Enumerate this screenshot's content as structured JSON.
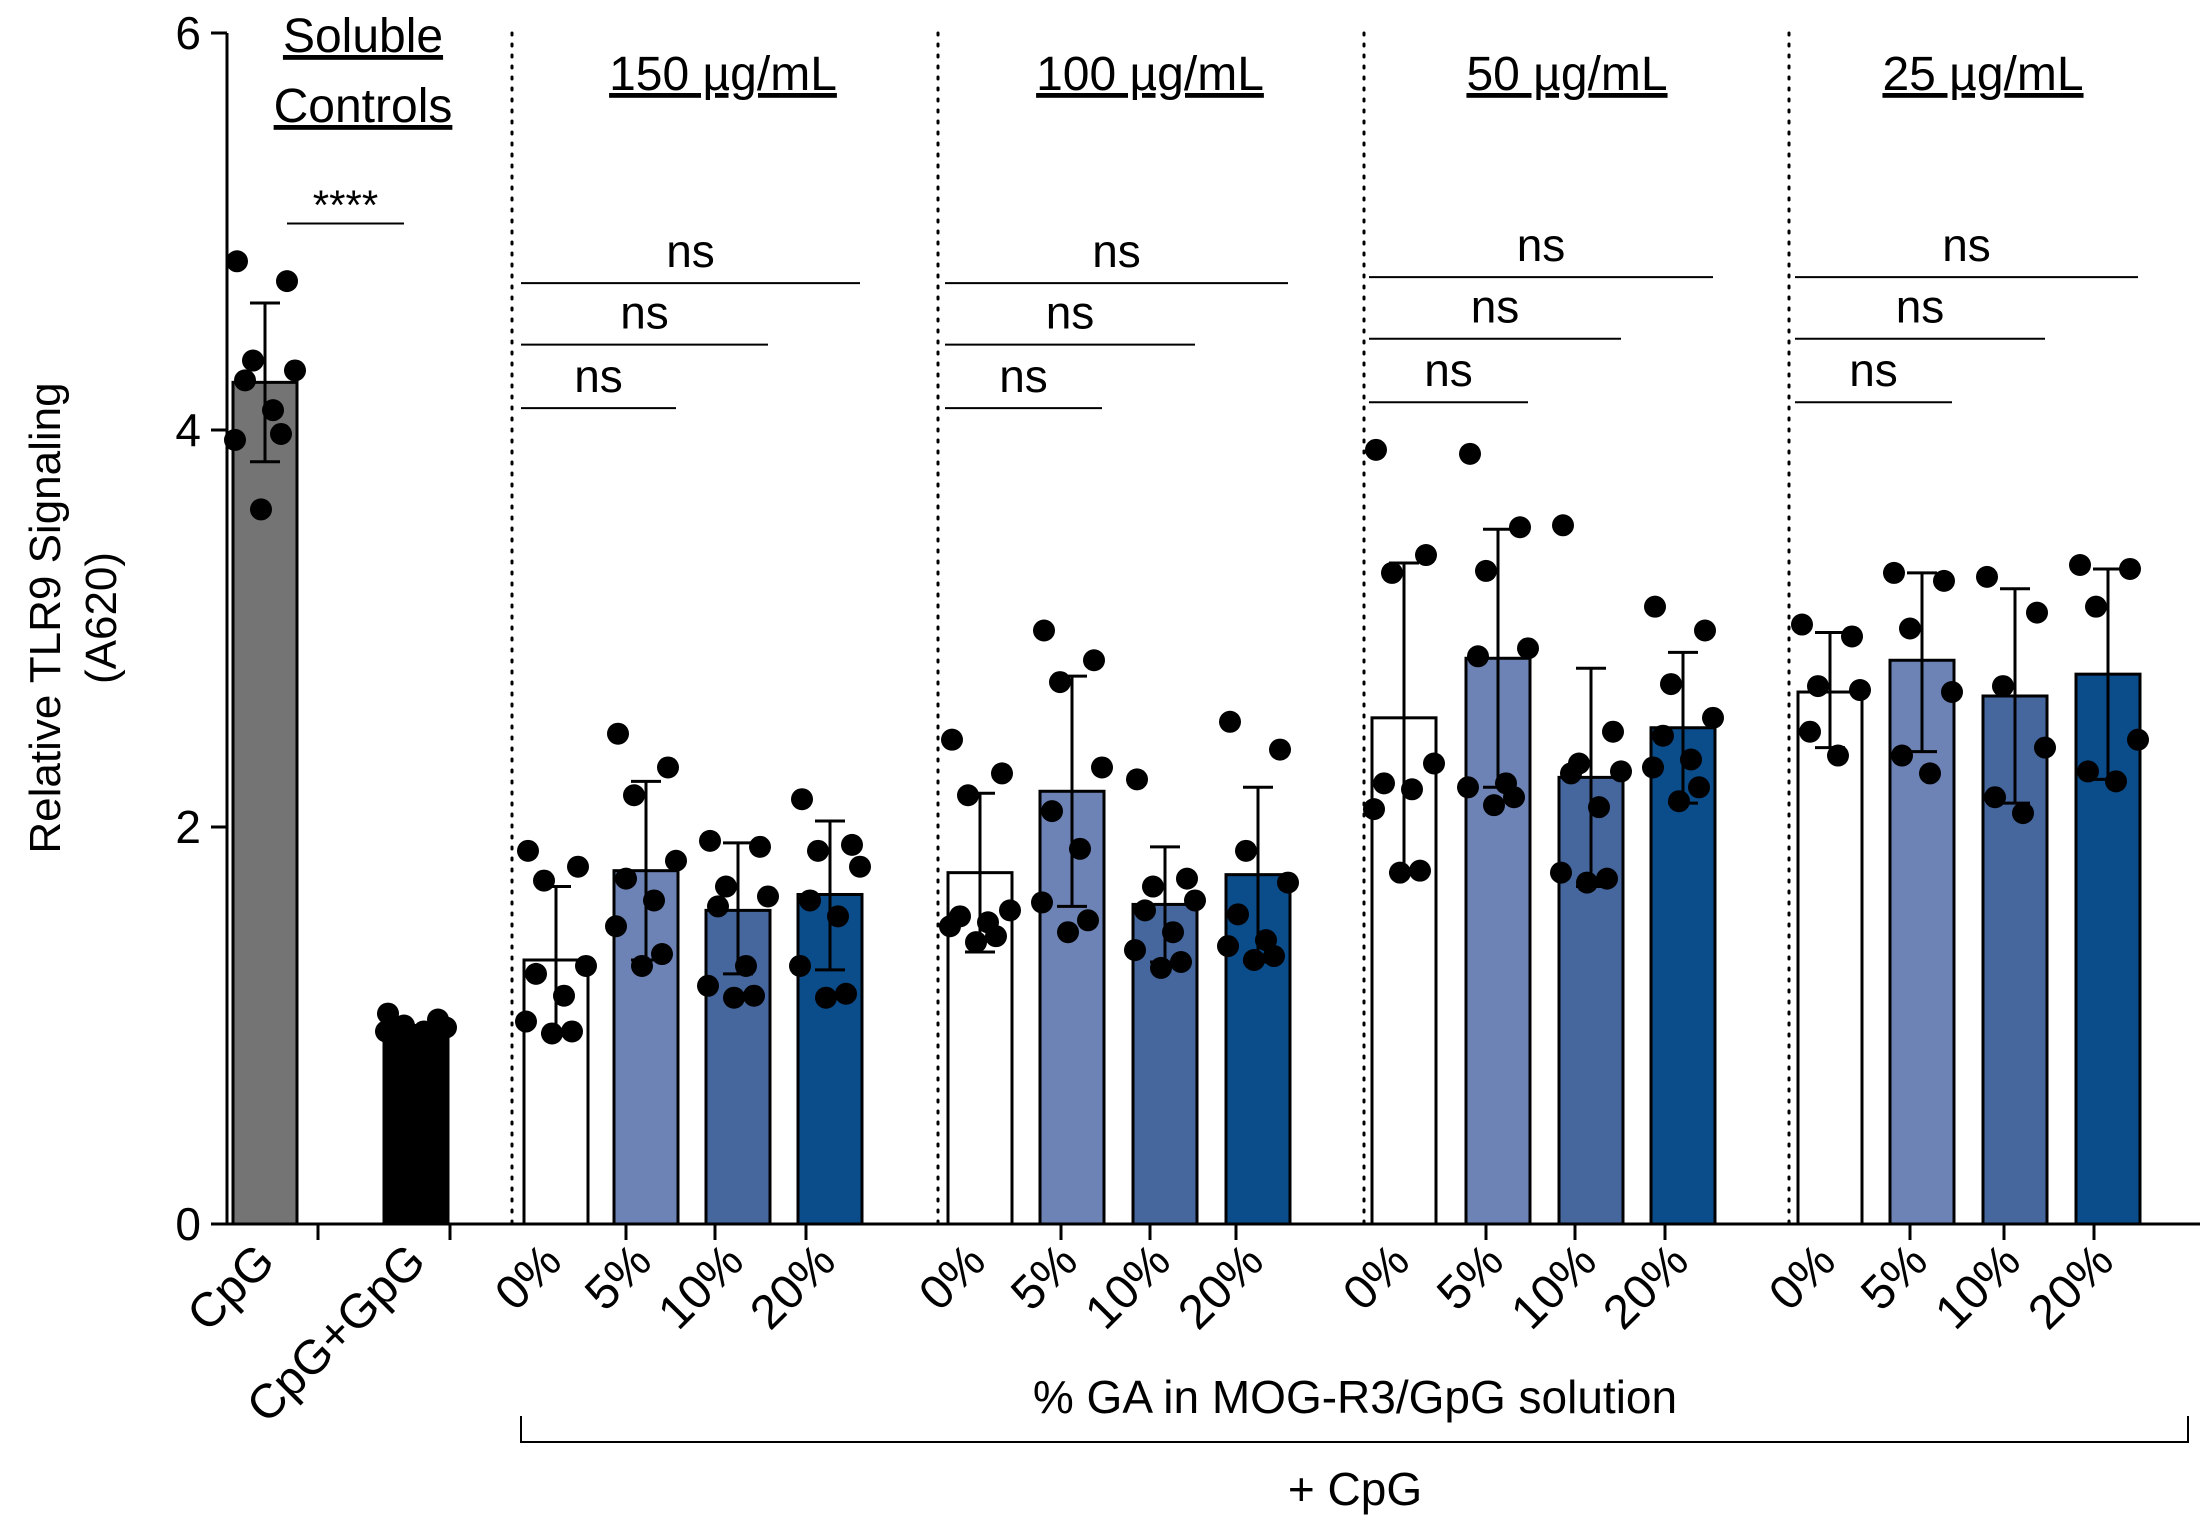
{
  "chart_data": {
    "type": "bar",
    "ylabel": "Relative TLR9 Signaling",
    "ylabel_unit": "(A620)",
    "ylim": [
      0,
      6
    ],
    "yticks": [
      0,
      2,
      4,
      6
    ],
    "xlabel": "% GA in MOG-R3/GpG solution",
    "bracket_label": "+ CpG",
    "colors": {
      "cpg": "#747474",
      "cpg_gpg": "#000000",
      "pct0": "#ffffff",
      "pct5": "#6d83b5",
      "pct10": "#45679e",
      "pct20": "#0b4c8a"
    },
    "groups": [
      {
        "title_lines": [
          "Soluble",
          "Controls"
        ],
        "bars": [
          {
            "label": "CpG",
            "color_key": "cpg",
            "mean": 4.24,
            "err_low": 3.84,
            "err_high": 4.64,
            "points": [
              4.85,
              4.75,
              4.35,
              4.3,
              4.25,
              4.1,
              3.95,
              3.98,
              3.6
            ]
          },
          {
            "label": "CpG+GpG",
            "color_key": "cpg_gpg",
            "mean": 0.98,
            "err_low": 0.96,
            "err_high": 1.0,
            "points": [
              1.06,
              1.03,
              1.0,
              0.99,
              0.98,
              0.97,
              0.97,
              0.96
            ]
          }
        ],
        "comparisons": [
          {
            "from": 0,
            "to": 1,
            "label": "****",
            "y": 5.04
          }
        ]
      },
      {
        "title_lines": [
          "150 µg/mL"
        ],
        "bars": [
          {
            "label": "0%",
            "color_key": "pct0",
            "mean": 1.33,
            "err_low": 0.96,
            "err_high": 1.7,
            "points": [
              1.88,
              1.8,
              1.73,
              1.3,
              1.26,
              1.15,
              1.02,
              0.97,
              0.96
            ]
          },
          {
            "label": "5%",
            "color_key": "pct5",
            "mean": 1.78,
            "err_low": 1.33,
            "err_high": 2.23,
            "points": [
              2.47,
              2.3,
              2.16,
              1.83,
              1.74,
              1.63,
              1.5,
              1.36,
              1.3
            ]
          },
          {
            "label": "10%",
            "color_key": "pct10",
            "mean": 1.58,
            "err_low": 1.26,
            "err_high": 1.92,
            "points": [
              1.93,
              1.9,
              1.7,
              1.65,
              1.6,
              1.3,
              1.2,
              1.15,
              1.14
            ]
          },
          {
            "label": "20%",
            "color_key": "pct20",
            "mean": 1.66,
            "err_low": 1.28,
            "err_high": 2.03,
            "points": [
              2.14,
              1.91,
              1.88,
              1.8,
              1.63,
              1.55,
              1.3,
              1.16,
              1.14
            ]
          }
        ],
        "comparisons": [
          {
            "from": 0,
            "to": 1,
            "label": "ns",
            "y": 4.11
          },
          {
            "from": 0,
            "to": 2,
            "label": "ns",
            "y": 4.43
          },
          {
            "from": 0,
            "to": 3,
            "label": "ns",
            "y": 4.74
          }
        ]
      },
      {
        "title_lines": [
          "100 µg/mL"
        ],
        "bars": [
          {
            "label": "0%",
            "color_key": "pct0",
            "mean": 1.77,
            "err_low": 1.37,
            "err_high": 2.17,
            "points": [
              2.44,
              2.27,
              2.16,
              1.58,
              1.55,
              1.52,
              1.5,
              1.45,
              1.42
            ]
          },
          {
            "label": "5%",
            "color_key": "pct5",
            "mean": 2.18,
            "err_low": 1.6,
            "err_high": 2.76,
            "points": [
              2.99,
              2.84,
              2.73,
              2.3,
              2.08,
              1.89,
              1.62,
              1.53,
              1.47
            ]
          },
          {
            "label": "10%",
            "color_key": "pct10",
            "mean": 1.61,
            "err_low": 1.32,
            "err_high": 1.9,
            "points": [
              2.24,
              1.74,
              1.7,
              1.63,
              1.58,
              1.47,
              1.38,
              1.32,
              1.29
            ]
          },
          {
            "label": "20%",
            "color_key": "pct20",
            "mean": 1.76,
            "err_low": 1.32,
            "err_high": 2.2,
            "points": [
              2.53,
              2.39,
              1.88,
              1.72,
              1.56,
              1.43,
              1.4,
              1.35,
              1.33
            ]
          }
        ],
        "comparisons": [
          {
            "from": 0,
            "to": 1,
            "label": "ns",
            "y": 4.11
          },
          {
            "from": 0,
            "to": 2,
            "label": "ns",
            "y": 4.43
          },
          {
            "from": 0,
            "to": 3,
            "label": "ns",
            "y": 4.74
          }
        ]
      },
      {
        "title_lines": [
          "50 µg/mL"
        ],
        "bars": [
          {
            "label": "0%",
            "color_key": "pct0",
            "mean": 2.55,
            "err_low": 1.77,
            "err_high": 3.33,
            "points": [
              3.9,
              3.37,
              3.28,
              2.32,
              2.22,
              2.19,
              2.09,
              1.78,
              1.77
            ]
          },
          {
            "label": "5%",
            "color_key": "pct5",
            "mean": 2.85,
            "err_low": 2.2,
            "err_high": 3.5,
            "points": [
              3.88,
              3.51,
              3.29,
              2.9,
              2.86,
              2.22,
              2.2,
              2.15,
              2.11
            ]
          },
          {
            "label": "10%",
            "color_key": "pct10",
            "mean": 2.25,
            "err_low": 1.7,
            "err_high": 2.8,
            "points": [
              3.52,
              2.48,
              2.32,
              2.28,
              2.27,
              2.1,
              1.77,
              1.74,
              1.72
            ]
          },
          {
            "label": "20%",
            "color_key": "pct20",
            "mean": 2.5,
            "err_low": 2.12,
            "err_high": 2.88,
            "points": [
              3.11,
              2.99,
              2.72,
              2.55,
              2.46,
              2.34,
              2.3,
              2.2,
              2.13
            ]
          }
        ],
        "comparisons": [
          {
            "from": 0,
            "to": 1,
            "label": "ns",
            "y": 4.14
          },
          {
            "from": 0,
            "to": 2,
            "label": "ns",
            "y": 4.46
          },
          {
            "from": 0,
            "to": 3,
            "label": "ns",
            "y": 4.77
          }
        ]
      },
      {
        "title_lines": [
          "25 µg/mL"
        ],
        "bars": [
          {
            "label": "0%",
            "color_key": "pct0",
            "mean": 2.68,
            "err_low": 2.4,
            "err_high": 2.98,
            "points": [
              3.02,
              2.96,
              2.71,
              2.69,
              2.48,
              2.36
            ]
          },
          {
            "label": "5%",
            "color_key": "pct5",
            "mean": 2.84,
            "err_low": 2.38,
            "err_high": 3.28,
            "points": [
              3.28,
              3.24,
              3.0,
              2.68,
              2.36,
              2.27
            ]
          },
          {
            "label": "10%",
            "color_key": "pct10",
            "mean": 2.66,
            "err_low": 2.12,
            "err_high": 3.2,
            "points": [
              3.26,
              3.08,
              2.71,
              2.4,
              2.15,
              2.07
            ]
          },
          {
            "label": "20%",
            "color_key": "pct20",
            "mean": 2.77,
            "err_low": 2.24,
            "err_high": 3.3,
            "points": [
              3.32,
              3.3,
              3.11,
              2.44,
              2.28,
              2.23
            ]
          }
        ],
        "comparisons": [
          {
            "from": 0,
            "to": 1,
            "label": "ns",
            "y": 4.14
          },
          {
            "from": 0,
            "to": 2,
            "label": "ns",
            "y": 4.46
          },
          {
            "from": 0,
            "to": 3,
            "label": "ns",
            "y": 4.77
          }
        ]
      }
    ]
  }
}
